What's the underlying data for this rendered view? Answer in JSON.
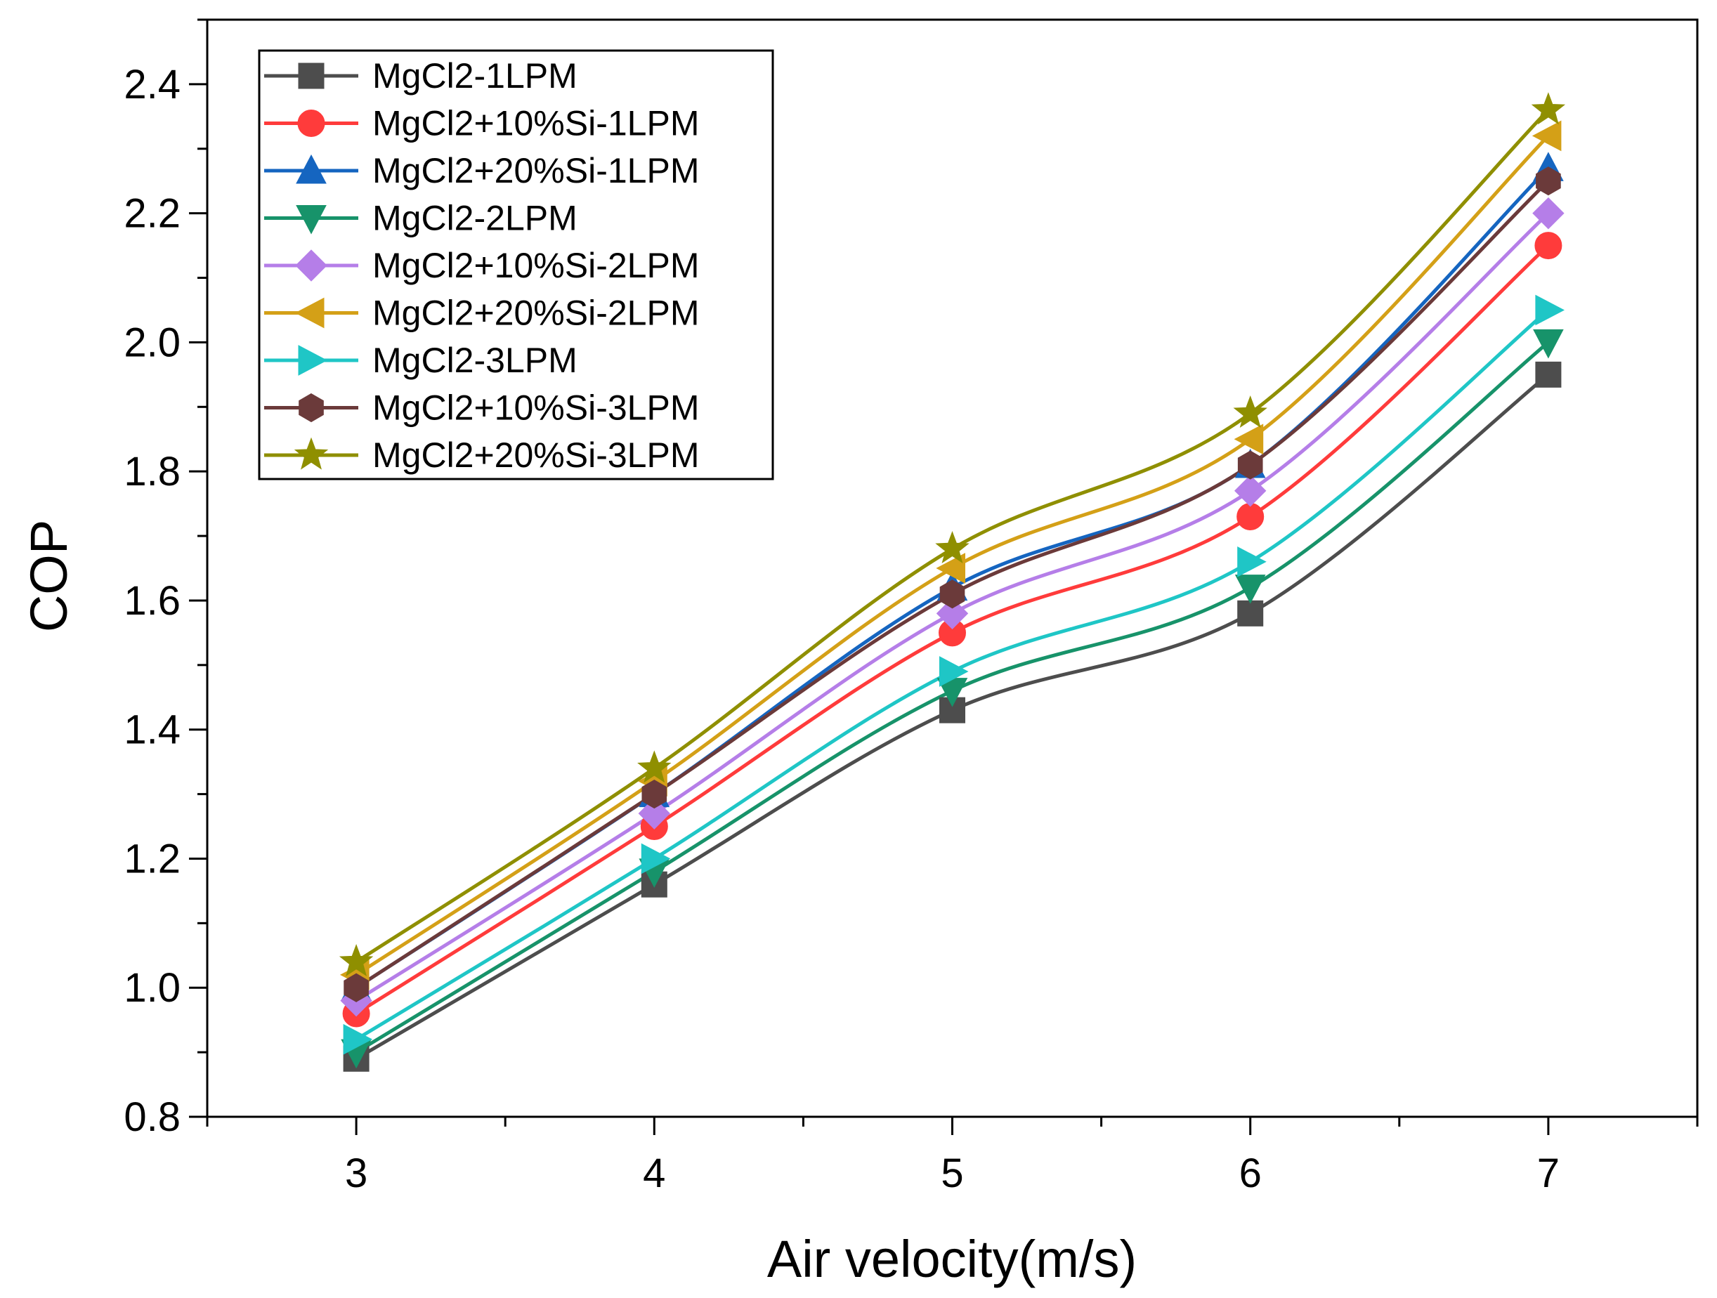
{
  "chart_data": {
    "type": "line",
    "title": "",
    "xlabel": "Air velocity(m/s)",
    "ylabel": "COP",
    "x": [
      3,
      4,
      5,
      6,
      7
    ],
    "xlim": [
      2.5,
      7.5
    ],
    "ylim": [
      0.8,
      2.5
    ],
    "xticks": [
      3,
      4,
      5,
      6,
      7
    ],
    "yticks": [
      0.8,
      1.0,
      1.2,
      1.4,
      1.6,
      1.8,
      2.0,
      2.2,
      2.4
    ],
    "ytick_labels": [
      "0.8",
      "1.0",
      "1.2",
      "1.4",
      "1.6",
      "1.8",
      "2.0",
      "2.2",
      "2.4"
    ],
    "legend_position": "top-left",
    "grid": false,
    "series": [
      {
        "name": "MgCl2-1LPM",
        "values": [
          0.89,
          1.16,
          1.43,
          1.58,
          1.95
        ],
        "color": "#4d4d4d",
        "marker": "square"
      },
      {
        "name": "MgCl2+10%Si-1LPM",
        "values": [
          0.96,
          1.25,
          1.55,
          1.73,
          2.15
        ],
        "color": "#ff3b3b",
        "marker": "circle"
      },
      {
        "name": "MgCl2+20%Si-1LPM",
        "values": [
          1.0,
          1.3,
          1.62,
          1.81,
          2.27
        ],
        "color": "#1565c0",
        "marker": "triangle-up"
      },
      {
        "name": "MgCl2-2LPM",
        "values": [
          0.9,
          1.18,
          1.46,
          1.62,
          2.0
        ],
        "color": "#17936a",
        "marker": "triangle-down"
      },
      {
        "name": "MgCl2+10%Si-2LPM",
        "values": [
          0.98,
          1.27,
          1.58,
          1.77,
          2.2
        ],
        "color": "#b57ee8",
        "marker": "diamond"
      },
      {
        "name": "MgCl2+20%Si-2LPM",
        "values": [
          1.02,
          1.32,
          1.65,
          1.85,
          2.32
        ],
        "color": "#d4a017",
        "marker": "triangle-left"
      },
      {
        "name": "MgCl2-3LPM",
        "values": [
          0.92,
          1.2,
          1.49,
          1.66,
          2.05
        ],
        "color": "#1fc6c6",
        "marker": "triangle-right"
      },
      {
        "name": "MgCl2+10%Si-3LPM",
        "values": [
          1.0,
          1.3,
          1.61,
          1.81,
          2.25
        ],
        "color": "#6b3a3a",
        "marker": "hexagon"
      },
      {
        "name": "MgCl2+20%Si-3LPM",
        "values": [
          1.04,
          1.34,
          1.68,
          1.89,
          2.36
        ],
        "color": "#8f8f00",
        "marker": "star"
      }
    ]
  }
}
